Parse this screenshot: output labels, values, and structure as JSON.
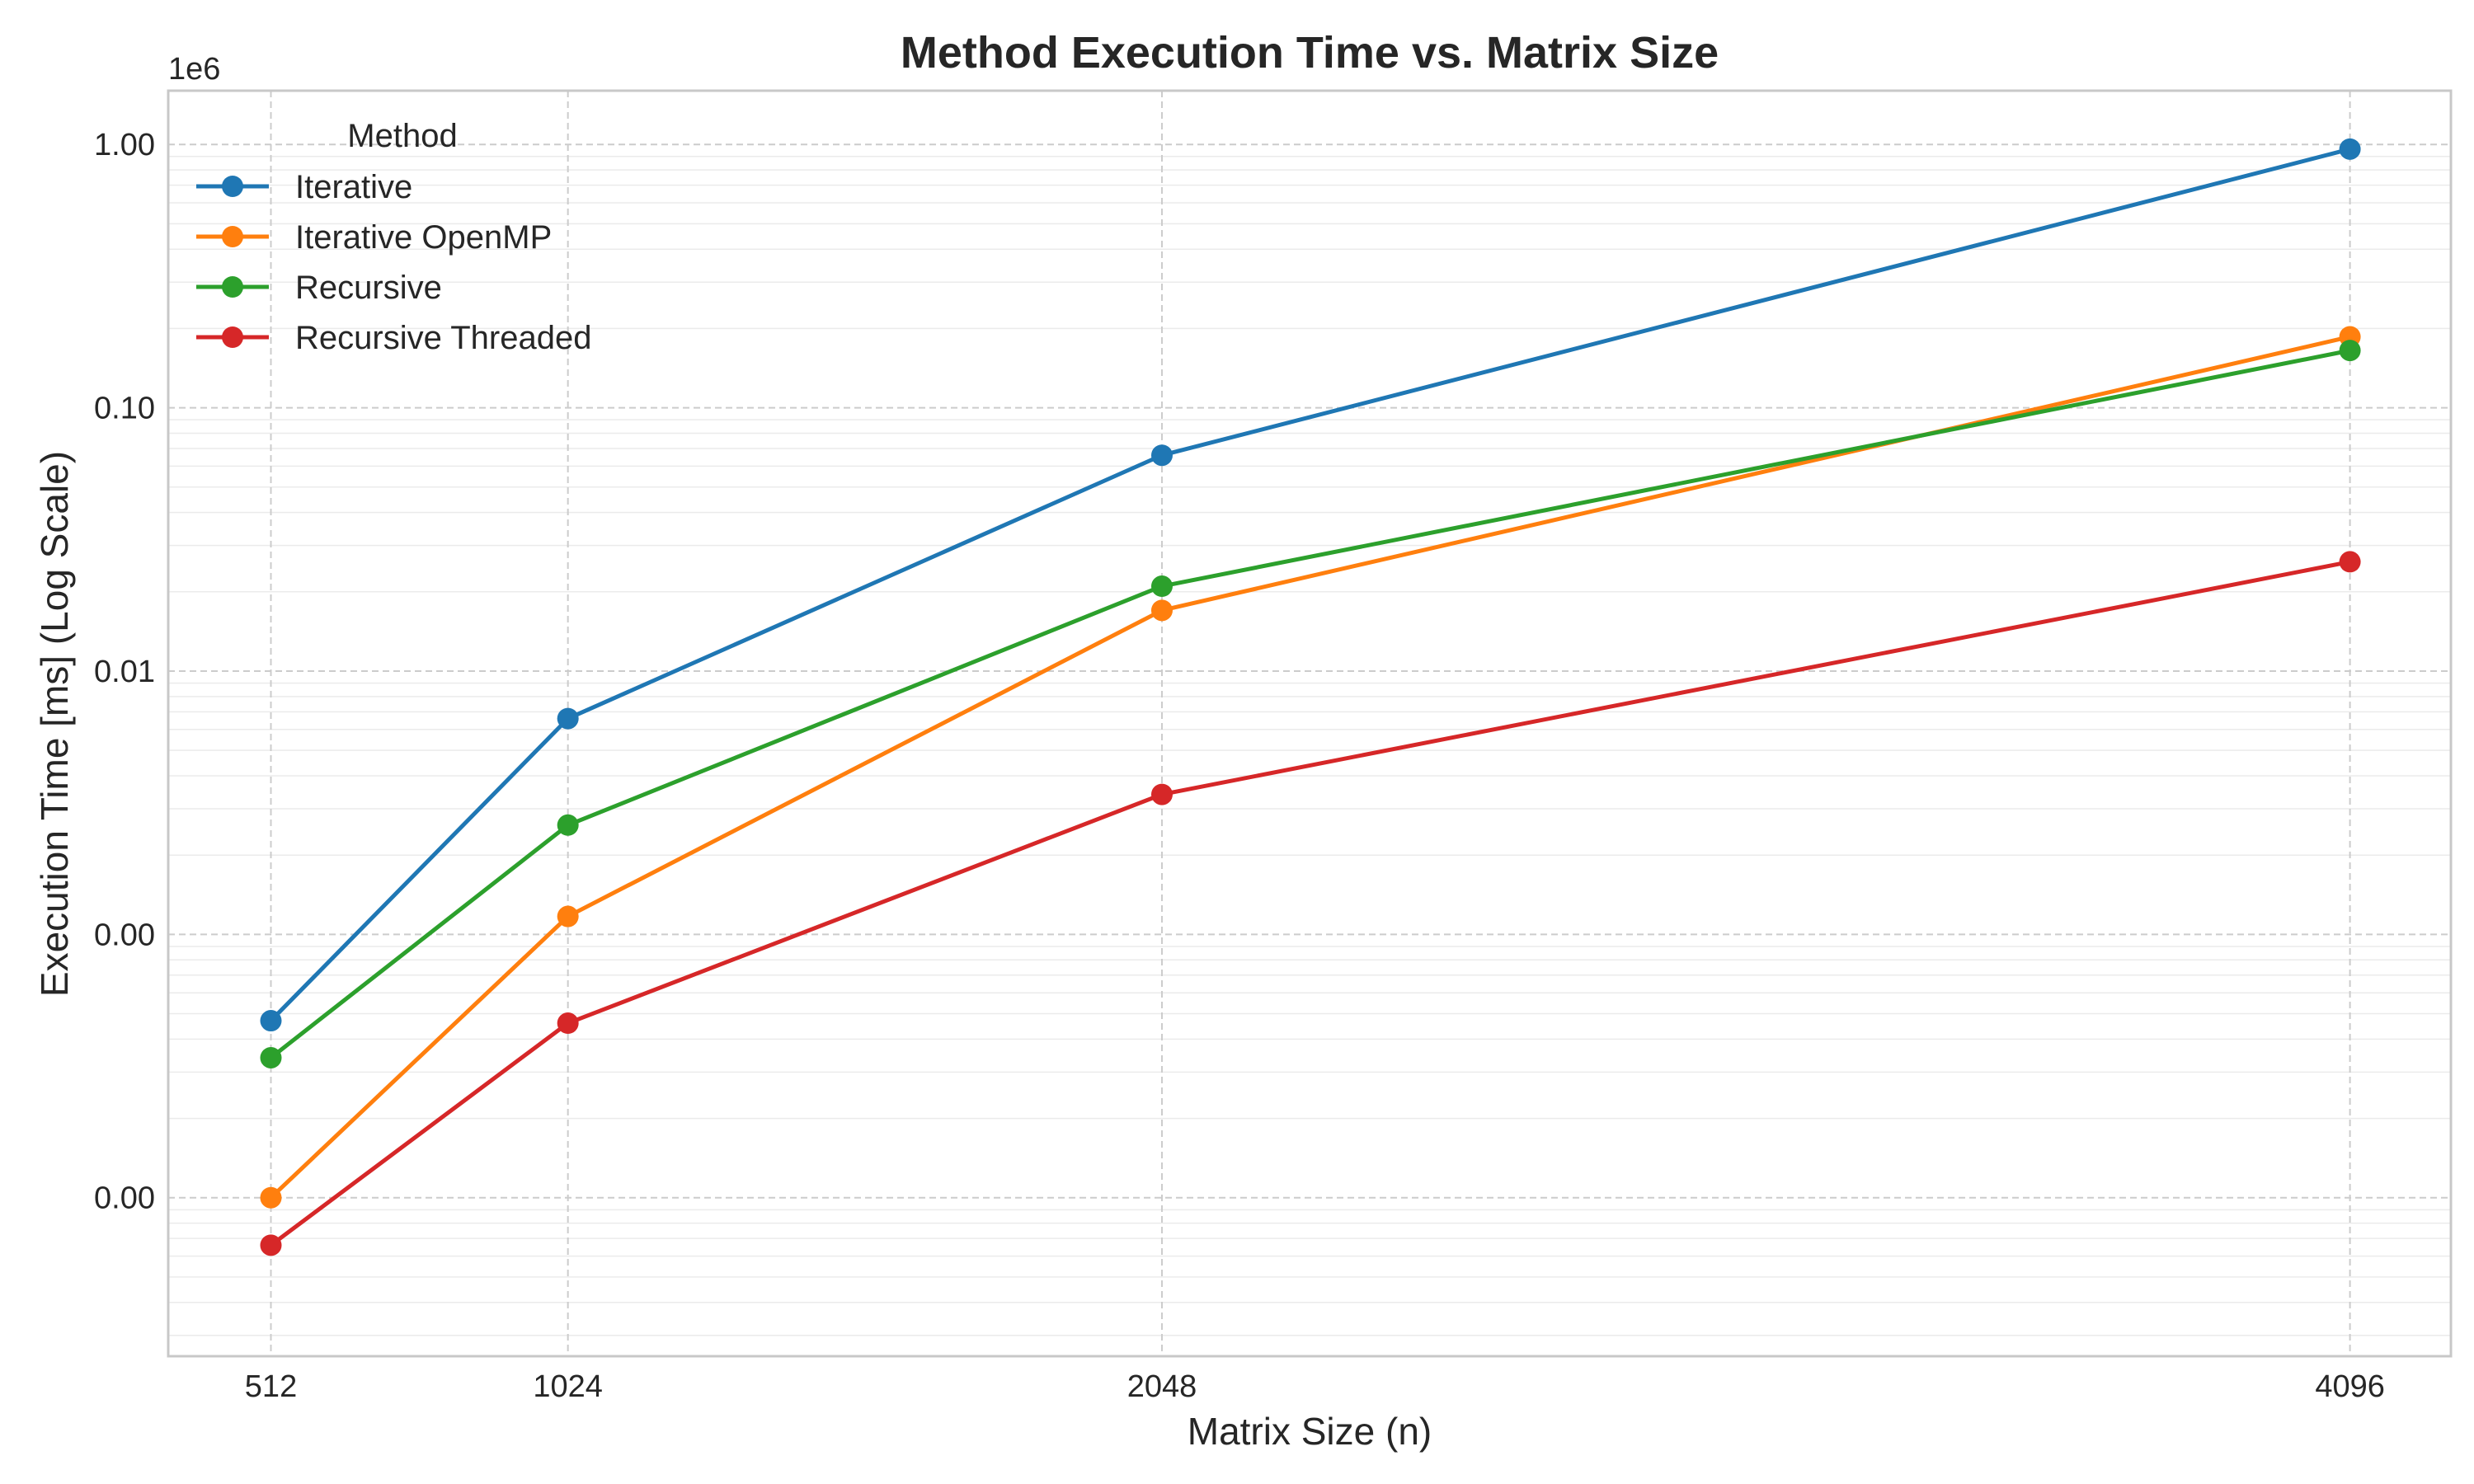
{
  "chart_data": {
    "type": "line",
    "title": "Method Execution Time vs. Matrix Size",
    "xlabel": "Matrix Size (n)",
    "ylabel": "Execution Time [ms] (Log Scale)",
    "y_scale": "log",
    "y_offset_label": "1e6",
    "x": [
      512,
      1024,
      2048,
      4096
    ],
    "x_ticks": [
      "512",
      "1024",
      "2048",
      "4096"
    ],
    "y_ticks": [
      {
        "value": 1.0,
        "label": "1.00"
      },
      {
        "value": 0.1,
        "label": "0.10"
      },
      {
        "value": 0.01,
        "label": "0.01"
      },
      {
        "value": 0.001,
        "label": "0.00"
      },
      {
        "value": 0.0001,
        "label": "0.00"
      }
    ],
    "ylim": [
      2.5e-05,
      1.6
    ],
    "xlim": [
      335,
      4270
    ],
    "grid": true,
    "legend_title": "Method",
    "legend_placement": "upper-left",
    "series": [
      {
        "name": "Iterative",
        "color": "#1f77b4",
        "values": [
          0.00047,
          0.0066,
          0.066,
          0.96
        ]
      },
      {
        "name": "Iterative OpenMP",
        "color": "#ff7f0e",
        "values": [
          0.0001,
          0.00117,
          0.017,
          0.186
        ]
      },
      {
        "name": "Recursive",
        "color": "#2ca02c",
        "values": [
          0.00034,
          0.0026,
          0.021,
          0.165
        ]
      },
      {
        "name": "Recursive Threaded",
        "color": "#d62728",
        "values": [
          6.6e-05,
          0.00046,
          0.0034,
          0.026
        ]
      }
    ]
  }
}
